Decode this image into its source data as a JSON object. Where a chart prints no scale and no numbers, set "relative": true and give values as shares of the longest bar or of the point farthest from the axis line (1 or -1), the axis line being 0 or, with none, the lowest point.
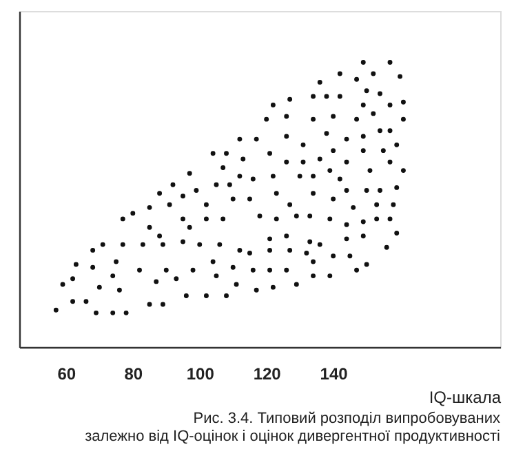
{
  "chart_data": {
    "type": "scatter",
    "title": "Рис. 3.4. Типовий розподіл випробовуваних\nзалежно від IQ-оцінок і оцінок дивергентної продуктивності",
    "xlabel": "IQ-шкала",
    "relative": true,
    "xlim": [
      46,
      190
    ],
    "xticks": [
      60,
      80,
      100,
      120,
      140
    ],
    "grid": false,
    "marker": "circle",
    "tick_labels": "x",
    "series": [
      {
        "color": "#111111",
        "x": [
          112,
          104,
          108,
          113,
          107,
          97,
          112,
          92,
          105,
          109,
          88,
          95,
          99,
          110,
          85,
          91,
          102,
          80,
          77,
          95,
          102,
          107,
          149,
          157,
          142,
          147,
          152,
          160,
          136,
          150,
          154,
          127,
          134,
          138,
          142,
          122,
          149,
          157,
          161,
          120,
          126,
          134,
          140,
          147,
          152,
          161,
          117,
          126,
          138,
          144,
          149,
          154,
          157,
          131,
          140,
          149,
          155,
          159,
          121,
          126,
          131,
          136,
          144,
          157,
          116,
          122,
          130,
          134,
          139,
          142,
          151,
          161,
          123,
          134,
          144,
          150,
          154,
          159,
          115,
          127,
          140,
          146,
          153,
          158,
          118,
          123,
          129,
          133,
          139,
          144,
          149,
          153,
          157,
          121,
          126,
          133,
          136,
          144,
          149,
          159,
          115,
          121,
          127,
          132,
          134,
          140,
          145,
          150,
          156,
          116,
          121,
          126,
          134,
          139,
          147,
          117,
          122,
          129,
          85,
          88,
          97,
          68,
          71,
          77,
          83,
          89,
          95,
          100,
          106,
          112,
          63,
          68,
          75,
          82,
          90,
          98,
          104,
          110,
          59,
          62,
          70,
          74,
          76,
          87,
          93,
          105,
          111,
          62,
          66,
          85,
          89,
          96,
          102,
          108,
          57,
          69,
          74,
          78
        ],
        "values": [
          0.73,
          0.68,
          0.68,
          0.66,
          0.63,
          0.61,
          0.6,
          0.57,
          0.57,
          0.57,
          0.54,
          0.53,
          0.55,
          0.52,
          0.49,
          0.5,
          0.5,
          0.47,
          0.45,
          0.45,
          0.45,
          0.45,
          1.0,
          1.0,
          0.96,
          0.94,
          0.96,
          0.95,
          0.93,
          0.9,
          0.89,
          0.87,
          0.88,
          0.88,
          0.88,
          0.85,
          0.85,
          0.85,
          0.86,
          0.8,
          0.81,
          0.8,
          0.81,
          0.8,
          0.82,
          0.8,
          0.73,
          0.74,
          0.75,
          0.73,
          0.74,
          0.76,
          0.76,
          0.71,
          0.69,
          0.69,
          0.69,
          0.71,
          0.68,
          0.65,
          0.65,
          0.66,
          0.65,
          0.65,
          0.59,
          0.6,
          0.6,
          0.6,
          0.62,
          0.59,
          0.62,
          0.62,
          0.54,
          0.54,
          0.55,
          0.55,
          0.55,
          0.56,
          0.52,
          0.5,
          0.52,
          0.49,
          0.5,
          0.5,
          0.46,
          0.45,
          0.46,
          0.46,
          0.45,
          0.43,
          0.44,
          0.45,
          0.45,
          0.38,
          0.39,
          0.37,
          0.36,
          0.38,
          0.39,
          0.4,
          0.33,
          0.34,
          0.34,
          0.33,
          0.3,
          0.32,
          0.32,
          0.29,
          0.35,
          0.27,
          0.27,
          0.27,
          0.25,
          0.25,
          0.27,
          0.2,
          0.21,
          0.22,
          0.42,
          0.39,
          0.42,
          0.34,
          0.36,
          0.36,
          0.36,
          0.36,
          0.37,
          0.36,
          0.36,
          0.34,
          0.29,
          0.28,
          0.3,
          0.27,
          0.27,
          0.27,
          0.3,
          0.28,
          0.22,
          0.24,
          0.21,
          0.25,
          0.2,
          0.23,
          0.24,
          0.25,
          0.22,
          0.16,
          0.16,
          0.15,
          0.15,
          0.18,
          0.18,
          0.18,
          0.13,
          0.12,
          0.12,
          0.12
        ]
      }
    ]
  }
}
